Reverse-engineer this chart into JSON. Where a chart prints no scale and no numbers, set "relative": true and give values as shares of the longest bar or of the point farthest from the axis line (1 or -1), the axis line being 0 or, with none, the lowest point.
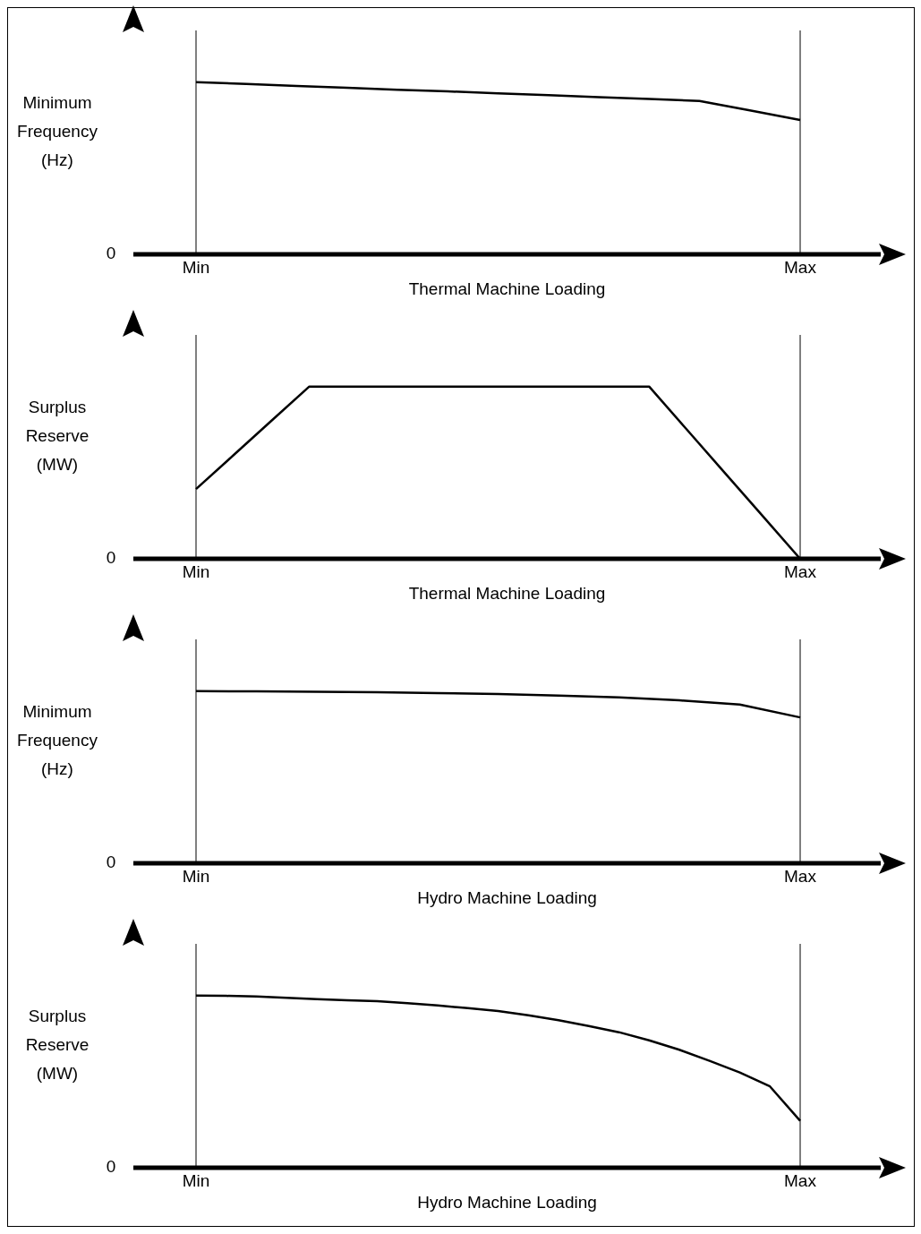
{
  "chart_data": [
    {
      "type": "line",
      "ylabel": "Minimum Frequency (Hz)",
      "xlabel": "Thermal Machine Loading",
      "relative": true,
      "annotations": [
        "0"
      ],
      "marker": "none",
      "categories": [
        "Min",
        null,
        null,
        null,
        null,
        null,
        null,
        null,
        null,
        null,
        null,
        null,
        "Max"
      ],
      "ref_lines": [
        {
          "axis": "x",
          "value": "Min",
          "label": null,
          "color": "#000000"
        },
        {
          "axis": "x",
          "value": "Max",
          "label": null,
          "color": "#000000"
        }
      ],
      "series": [
        {
          "color": "#000000",
          "values": [
            1,
            0.989,
            0.978,
            0.967,
            0.956,
            0.946,
            0.935,
            0.924,
            0.913,
            0.902,
            0.891,
            0.836,
            0.78
          ]
        }
      ]
    },
    {
      "type": "line",
      "ylabel": "Surplus Reserve (MW)",
      "xlabel": "Thermal Machine Loading",
      "relative": true,
      "annotations": [
        "0"
      ],
      "marker": "none",
      "categories": [
        "Min",
        null,
        null,
        null,
        null,
        null,
        null,
        null,
        null,
        null,
        null,
        null,
        null,
        null,
        null,
        null,
        "Max"
      ],
      "ref_lines": [
        {
          "axis": "x",
          "value": "Min",
          "label": null,
          "color": "#000000"
        },
        {
          "axis": "x",
          "value": "Max",
          "label": null,
          "color": "#000000"
        }
      ],
      "series": [
        {
          "color": "#000000",
          "values": [
            0.405,
            0.603,
            0.802,
            1,
            1,
            1,
            1,
            1,
            1,
            1,
            1,
            1,
            1,
            0.75,
            0.5,
            0.25,
            0
          ]
        }
      ]
    },
    {
      "type": "line",
      "ylabel": "Minimum Frequency (Hz)",
      "xlabel": "Hydro Machine Loading",
      "relative": true,
      "annotations": [
        "0"
      ],
      "marker": "none",
      "categories": [
        "Min",
        null,
        null,
        null,
        null,
        null,
        null,
        null,
        null,
        null,
        "Max"
      ],
      "ref_lines": [
        {
          "axis": "x",
          "value": "Min",
          "label": null,
          "color": "#000000"
        },
        {
          "axis": "x",
          "value": "Max",
          "label": null,
          "color": "#000000"
        }
      ],
      "series": [
        {
          "color": "#000000",
          "values": [
            1,
            0.998,
            0.996,
            0.993,
            0.988,
            0.983,
            0.974,
            0.963,
            0.946,
            0.922,
            0.847
          ]
        }
      ]
    },
    {
      "type": "line",
      "ylabel": "Surplus Reserve (MW)",
      "xlabel": "Hydro Machine Loading",
      "relative": true,
      "annotations": [
        "0"
      ],
      "marker": "none",
      "categories": [
        "Min",
        null,
        null,
        null,
        null,
        null,
        null,
        null,
        null,
        null,
        null,
        null,
        null,
        null,
        null,
        null,
        null,
        null,
        null,
        null,
        "Max"
      ],
      "ref_lines": [
        {
          "axis": "x",
          "value": "Min",
          "label": null,
          "color": "#000000"
        },
        {
          "axis": "x",
          "value": "Max",
          "label": null,
          "color": "#000000"
        }
      ],
      "series": [
        {
          "color": "#000000",
          "values": [
            1,
            0.998,
            0.994,
            0.987,
            0.979,
            0.973,
            0.967,
            0.955,
            0.942,
            0.927,
            0.91,
            0.885,
            0.857,
            0.823,
            0.787,
            0.74,
            0.685,
            0.621,
            0.553,
            0.472,
            0.272
          ]
        }
      ]
    }
  ]
}
